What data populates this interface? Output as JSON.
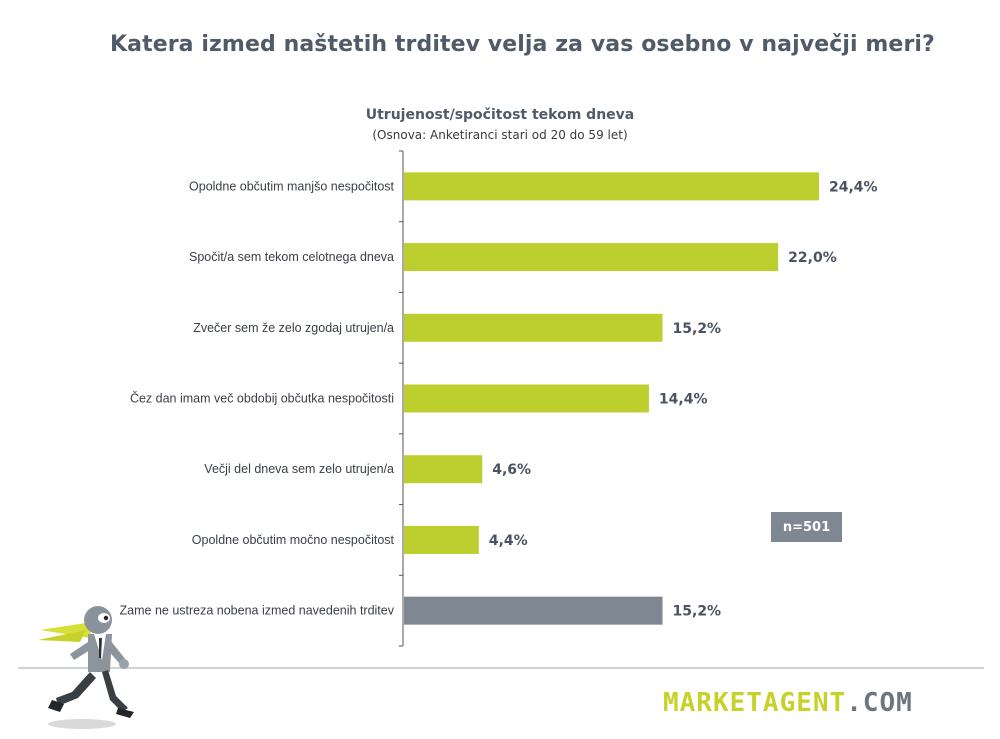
{
  "page": {
    "title": "Katera izmed naštetih trditev velja za vas osebno v največji meri?"
  },
  "chart_data": {
    "type": "bar",
    "orientation": "horizontal",
    "title": "Utrujenost/spočitost tekom dneva",
    "subtitle": "(Osnova: Anketiranci stari od 20 do 59 let)",
    "categories": [
      "Opoldne občutim manjšo nespočitost",
      "Spočit/a sem tekom celotnega dneva",
      "Zvečer sem že zelo zgodaj utrujen/a",
      "Čez dan imam več obdobij občutka nespočitosti",
      "Večji del dneva sem zelo utrujen/a",
      "Opoldne občutim močno nespočitost",
      "Zame ne ustreza nobena izmed navedenih trditev"
    ],
    "values": [
      24.4,
      22.0,
      15.2,
      14.4,
      4.6,
      4.4,
      15.2
    ],
    "value_labels": [
      "24,4%",
      "22,0%",
      "15,2%",
      "14,4%",
      "4,6%",
      "4,4%",
      "15,2%"
    ],
    "bar_colors": [
      "#bccf2e",
      "#bccf2e",
      "#bccf2e",
      "#bccf2e",
      "#bccf2e",
      "#bccf2e",
      "#7f8892"
    ],
    "xlim": [
      0,
      30
    ],
    "grid": false,
    "legend": "none"
  },
  "badge": {
    "label": "n=501",
    "color": "#7f8892"
  },
  "logo": {
    "part1": "MARKETAGENT",
    "part2": ".COM",
    "color1": "#c6d22a",
    "color2": "#6d767f"
  },
  "colors": {
    "accent": "#bccf2e",
    "neutral": "#7f8892",
    "title": "#4f5b69"
  }
}
